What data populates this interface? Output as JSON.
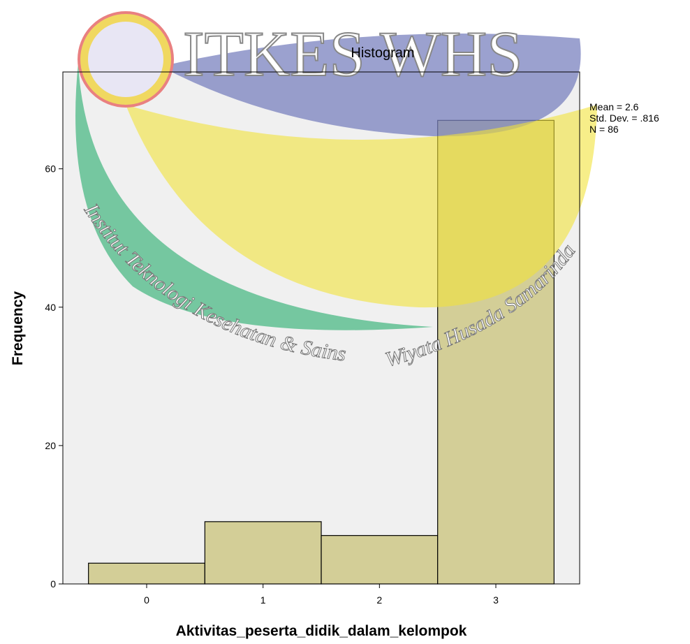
{
  "chart_data": {
    "type": "histogram",
    "title": "Histogram",
    "x_label": "Aktivitas_peserta_didik_dalam_kelompok",
    "y_label": "Frequency",
    "bins": [
      -0.5,
      0.5,
      1.5,
      2.5,
      3.5
    ],
    "values": [
      3,
      9,
      7,
      67
    ],
    "color": "#d3ce97",
    "xlim": [
      -0.72,
      3.72
    ],
    "ylim": [
      0,
      74
    ],
    "xticks": [
      0,
      1,
      2,
      3
    ],
    "yticks": [
      0,
      20,
      40,
      60
    ],
    "annotations": [
      "Mean = 2.6",
      "Std. Dev. = .816",
      "N = 86"
    ]
  },
  "watermark": {
    "logo_text": "ITKES WHS",
    "arc_text_1": "Institut Teknologi Kesehatan & Sains",
    "arc_text_2": "Wiyata Husada Samarinda"
  }
}
